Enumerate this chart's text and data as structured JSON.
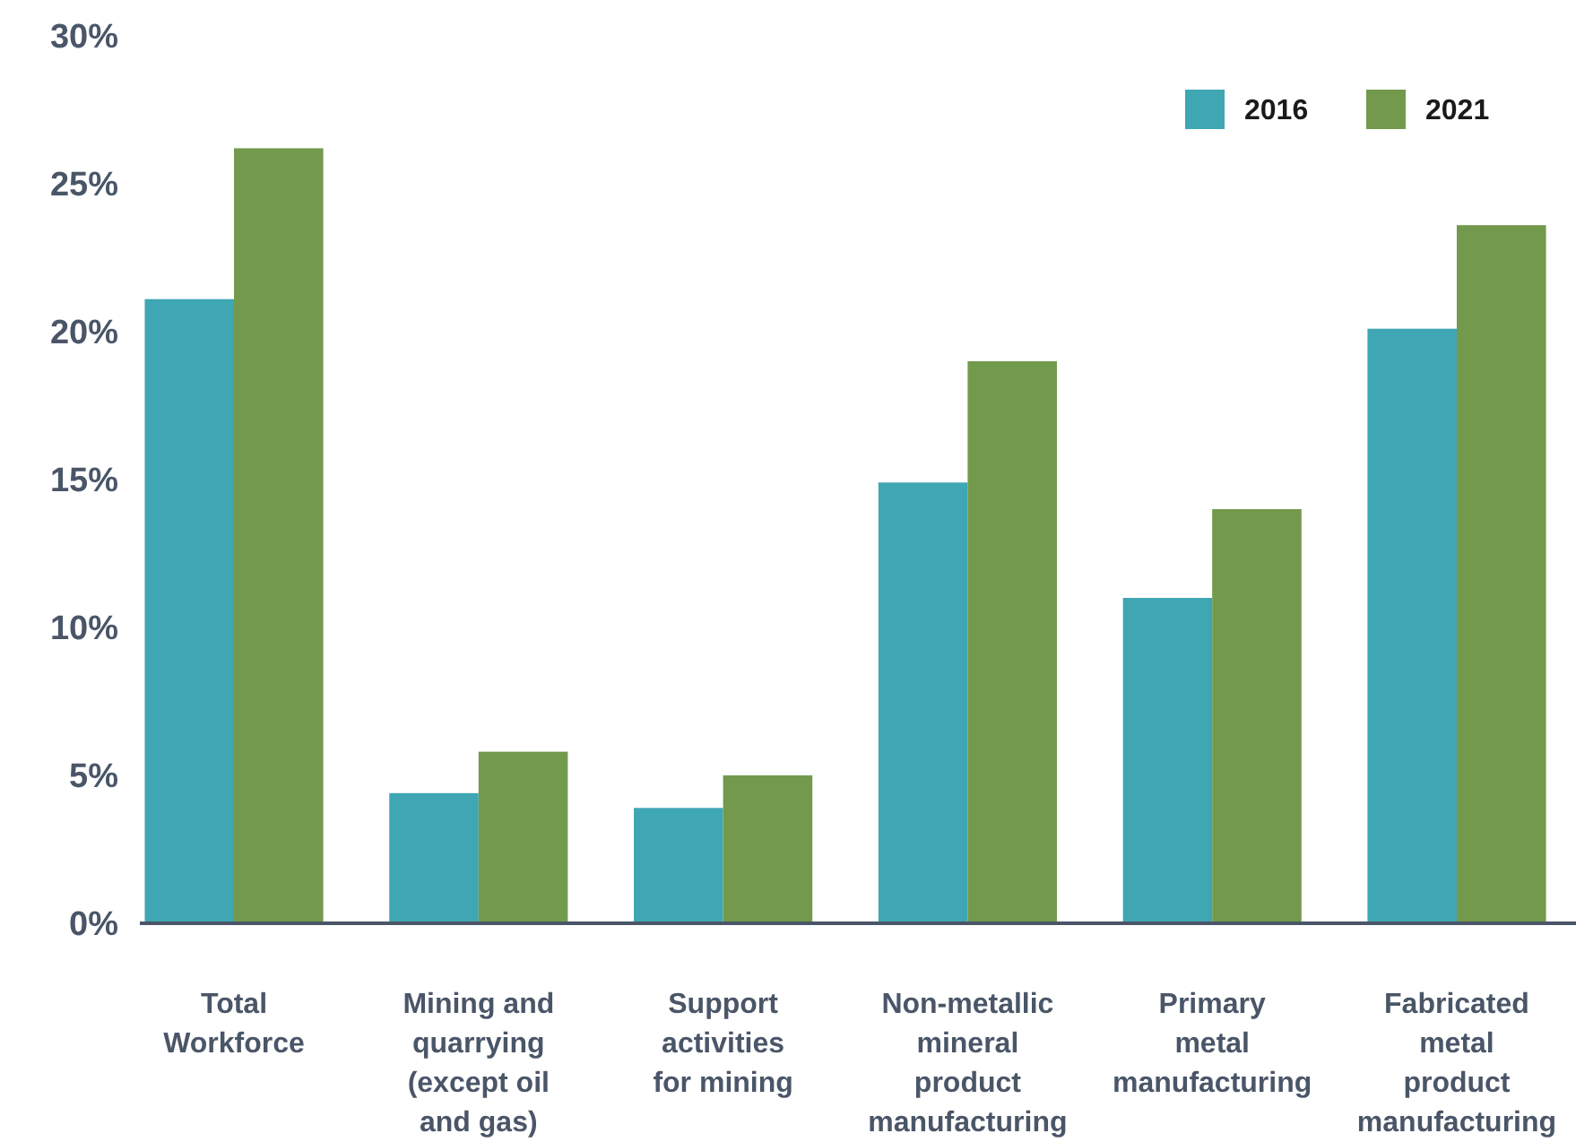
{
  "chart_data": {
    "type": "bar",
    "categories": [
      "Total Workforce",
      "Mining and quarrying (except oil and gas)",
      "Support activities for mining",
      "Non-metallic mineral product manufacturing",
      "Primary metal manufacturing",
      "Fabricated metal product manufacturing"
    ],
    "series": [
      {
        "name": "2016",
        "color": "#3fa6b4",
        "values": [
          21.1,
          4.4,
          3.9,
          14.9,
          11.0,
          20.1
        ]
      },
      {
        "name": "2021",
        "color": "#72994c",
        "values": [
          26.2,
          5.8,
          5.0,
          19.0,
          14.0,
          23.6
        ]
      }
    ],
    "ylim": [
      0,
      30
    ],
    "yticks": [
      {
        "value": 0,
        "label": "0%"
      },
      {
        "value": 5,
        "label": "5%"
      },
      {
        "value": 10,
        "label": "10%"
      },
      {
        "value": 15,
        "label": "15%"
      },
      {
        "value": 20,
        "label": "20%"
      },
      {
        "value": 25,
        "label": "25%"
      },
      {
        "value": 30,
        "label": "30%"
      }
    ],
    "grid": false,
    "legend": "top right"
  }
}
